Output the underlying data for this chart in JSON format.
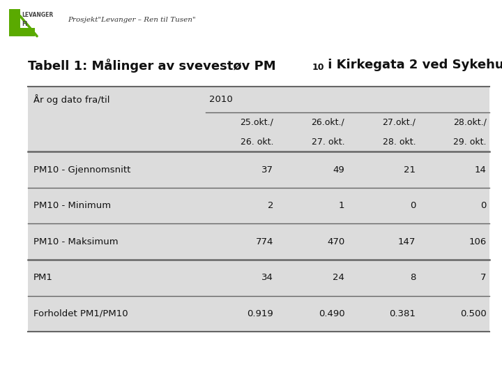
{
  "header_text": "Prosjekt\"Levanger – Ren til Tusen\"",
  "bg_color": "#dcdcdc",
  "white_bg": "#ffffff",
  "col_header_row1_label": "År og dato fra/til",
  "col_header_year": "2010",
  "col_header_row2": [
    "25.okt./",
    "26.okt./",
    "27.okt./",
    "28.okt./"
  ],
  "col_header_row3": [
    "26. okt.",
    "27. okt.",
    "28. okt.",
    "29. okt."
  ],
  "rows": [
    [
      "PM10 - Gjennomsnitt",
      "37",
      "49",
      "21",
      "14"
    ],
    [
      "PM10 - Minimum",
      "2",
      "1",
      "0",
      "0"
    ],
    [
      "PM10 - Maksimum",
      "774",
      "470",
      "147",
      "106"
    ],
    [
      "PM1",
      "34",
      "24",
      "8",
      "7"
    ],
    [
      "Forholdet PM1/PM10",
      "0.919",
      "0.490",
      "0.381",
      "0.500"
    ]
  ],
  "logo_green": "#5aaa00",
  "line_color": "#666666",
  "text_color": "#111111"
}
